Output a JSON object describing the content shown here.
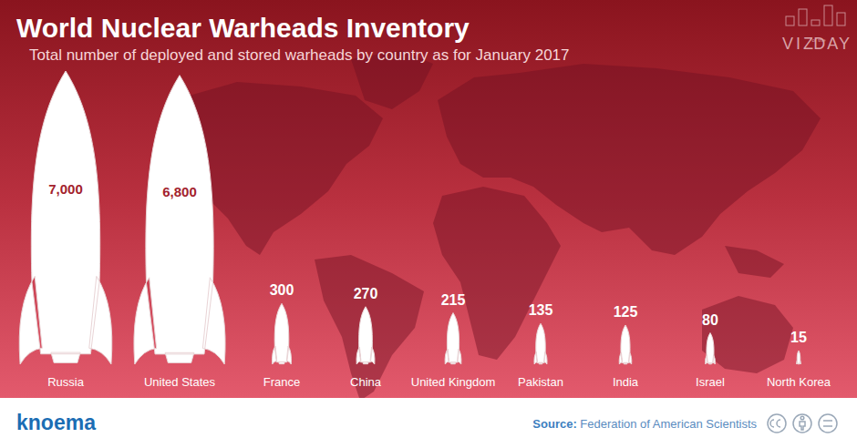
{
  "chart_data": {
    "type": "bar",
    "title": "World Nuclear Warheads Inventory",
    "subtitle": "Total number of deployed and stored warheads by country as for January 2017",
    "categories": [
      "Russia",
      "United States",
      "France",
      "China",
      "United Kingdom",
      "Pakistan",
      "India",
      "Israel",
      "North Korea"
    ],
    "values": [
      7000,
      6800,
      300,
      270,
      215,
      135,
      125,
      80,
      15
    ],
    "value_labels": [
      "7,000",
      "6,800",
      "300",
      "270",
      "215",
      "135",
      "125",
      "80",
      "15"
    ],
    "color": "#ffffff",
    "data_labels": true,
    "tick_labels": false,
    "grid": false,
    "logo": "knoema",
    "badge": [
      "VIZ",
      "of the",
      "DAY"
    ],
    "source": "Source: Federation of American Scientists"
  }
}
